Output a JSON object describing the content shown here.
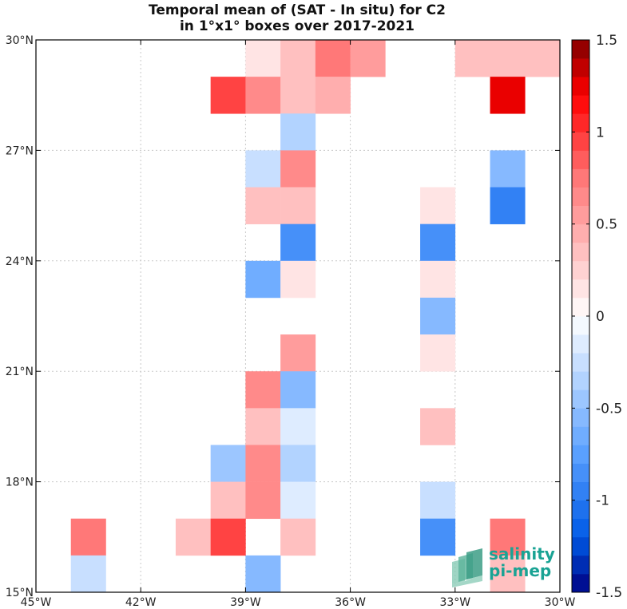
{
  "chart_data": {
    "type": "heatmap",
    "title": [
      "Temporal mean of (SAT - In situ) for C2",
      "in 1°x1° boxes over 2017-2021"
    ],
    "x_range": [
      -45,
      -30
    ],
    "y_range": [
      15,
      30
    ],
    "x_ticks": [
      {
        "value": -45,
        "label": "45°W"
      },
      {
        "value": -42,
        "label": "42°W"
      },
      {
        "value": -39,
        "label": "39°W"
      },
      {
        "value": -36,
        "label": "36°W"
      },
      {
        "value": -33,
        "label": "33°W"
      },
      {
        "value": -30,
        "label": "30°W"
      }
    ],
    "y_ticks": [
      {
        "value": 15,
        "label": "15°N"
      },
      {
        "value": 18,
        "label": "18°N"
      },
      {
        "value": 21,
        "label": "21°N"
      },
      {
        "value": 24,
        "label": "24°N"
      },
      {
        "value": 27,
        "label": "27°N"
      },
      {
        "value": 30,
        "label": "30°N"
      }
    ],
    "grid": true,
    "colorbar": {
      "min": -1.5,
      "max": 1.5,
      "levels": 30,
      "ticks": [
        {
          "value": 1.5,
          "label": "1.5"
        },
        {
          "value": 1,
          "label": "1"
        },
        {
          "value": 0.5,
          "label": "0.5"
        },
        {
          "value": 0,
          "label": "0"
        },
        {
          "value": -0.5,
          "label": "-0.5"
        },
        {
          "value": -1,
          "label": "-1"
        },
        {
          "value": -1.5,
          "label": "-1.5"
        }
      ]
    },
    "cells": [
      {
        "lon": -39,
        "lat": 29,
        "value": 0.15
      },
      {
        "lon": -38,
        "lat": 29,
        "value": 0.3
      },
      {
        "lon": -37,
        "lat": 29,
        "value": 0.75
      },
      {
        "lon": -36,
        "lat": 29,
        "value": 0.5
      },
      {
        "lon": -33,
        "lat": 29,
        "value": 0.3
      },
      {
        "lon": -32,
        "lat": 29,
        "value": 0.3
      },
      {
        "lon": -31,
        "lat": 29,
        "value": 0.3
      },
      {
        "lon": -40,
        "lat": 28,
        "value": 0.95
      },
      {
        "lon": -39,
        "lat": 28,
        "value": 0.6
      },
      {
        "lon": -38,
        "lat": 28,
        "value": 0.3
      },
      {
        "lon": -37,
        "lat": 28,
        "value": 0.45
      },
      {
        "lon": -32,
        "lat": 28,
        "value": 1.25
      },
      {
        "lon": -38,
        "lat": 27,
        "value": -0.35
      },
      {
        "lon": -39,
        "lat": 26,
        "value": -0.25
      },
      {
        "lon": -38,
        "lat": 26,
        "value": 0.6
      },
      {
        "lon": -32,
        "lat": 26,
        "value": -0.55
      },
      {
        "lon": -39,
        "lat": 25,
        "value": 0.3
      },
      {
        "lon": -38,
        "lat": 25,
        "value": 0.3
      },
      {
        "lon": -34,
        "lat": 25,
        "value": 0.15
      },
      {
        "lon": -32,
        "lat": 25,
        "value": -0.95
      },
      {
        "lon": -38,
        "lat": 24,
        "value": -0.85
      },
      {
        "lon": -34,
        "lat": 24,
        "value": -0.85
      },
      {
        "lon": -39,
        "lat": 23,
        "value": -0.65
      },
      {
        "lon": -38,
        "lat": 23,
        "value": 0.15
      },
      {
        "lon": -34,
        "lat": 23,
        "value": 0.15
      },
      {
        "lon": -34,
        "lat": 22,
        "value": -0.55
      },
      {
        "lon": -38,
        "lat": 21,
        "value": 0.5
      },
      {
        "lon": -34,
        "lat": 21,
        "value": 0.15
      },
      {
        "lon": -39,
        "lat": 20,
        "value": 0.65
      },
      {
        "lon": -38,
        "lat": 20,
        "value": -0.6
      },
      {
        "lon": -39,
        "lat": 19,
        "value": 0.3
      },
      {
        "lon": -38,
        "lat": 19,
        "value": -0.15
      },
      {
        "lon": -34,
        "lat": 19,
        "value": 0.3
      },
      {
        "lon": -40,
        "lat": 18,
        "value": -0.5
      },
      {
        "lon": -39,
        "lat": 18,
        "value": 0.65
      },
      {
        "lon": -38,
        "lat": 18,
        "value": -0.4
      },
      {
        "lon": -40,
        "lat": 17,
        "value": 0.4
      },
      {
        "lon": -39,
        "lat": 17,
        "value": 0.65
      },
      {
        "lon": -38,
        "lat": 17,
        "value": -0.15
      },
      {
        "lon": -34,
        "lat": 17,
        "value": -0.25
      },
      {
        "lon": -44,
        "lat": 16,
        "value": 0.8
      },
      {
        "lon": -41,
        "lat": 16,
        "value": 0.35
      },
      {
        "lon": -40,
        "lat": 16,
        "value": 0.95
      },
      {
        "lon": -38,
        "lat": 16,
        "value": 0.3
      },
      {
        "lon": -34,
        "lat": 16,
        "value": -0.85
      },
      {
        "lon": -32,
        "lat": 16,
        "value": 0.8
      },
      {
        "lon": -44,
        "lat": 15,
        "value": -0.25
      },
      {
        "lon": -39,
        "lat": 15,
        "value": -0.6
      },
      {
        "lon": -32,
        "lat": 15,
        "value": 0.3
      }
    ]
  },
  "logo": {
    "line1": "salinity",
    "line2": "pi-mep",
    "color": "#1aa394"
  }
}
